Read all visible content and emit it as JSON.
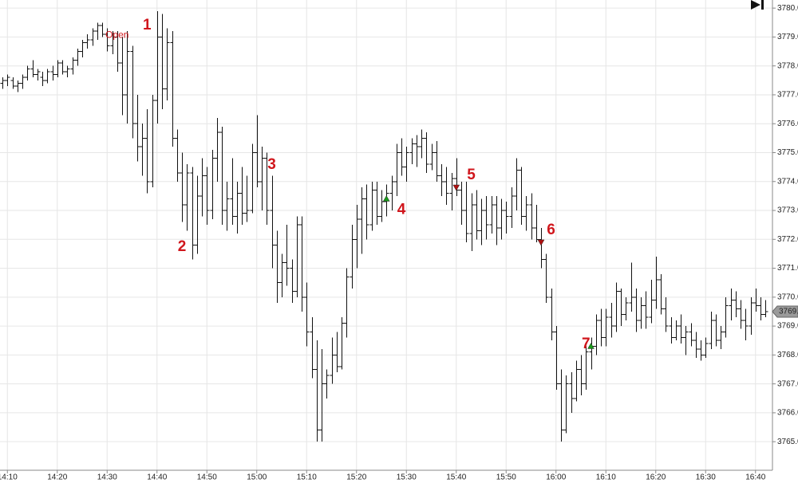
{
  "chart_data": {
    "type": "ohlc",
    "categories": [
      null,
      "14:10",
      null,
      null,
      null,
      null,
      null,
      null,
      null,
      null,
      null,
      "14:20",
      null,
      null,
      null,
      null,
      null,
      null,
      null,
      null,
      null,
      "14:30",
      null,
      null,
      null,
      null,
      null,
      null,
      null,
      null,
      null,
      "14:40",
      null,
      null,
      null,
      null,
      null,
      null,
      null,
      null,
      null,
      "14:50",
      null,
      null,
      null,
      null,
      null,
      null,
      null,
      null,
      null,
      "15:00",
      null,
      null,
      null,
      null,
      null,
      null,
      null,
      null,
      null,
      "15:10",
      null,
      null,
      null,
      null,
      null,
      null,
      null,
      null,
      null,
      "15:20",
      null,
      null,
      null,
      null,
      null,
      null,
      null,
      null,
      null,
      "15:30",
      null,
      null,
      null,
      null,
      null,
      null,
      null,
      null,
      null,
      "15:40",
      null,
      null,
      null,
      null,
      null,
      null,
      null,
      null,
      null,
      "15:50",
      null,
      null,
      null,
      null,
      null,
      null,
      null,
      null,
      null,
      "16:00",
      null,
      null,
      null,
      null,
      null,
      null,
      null,
      null,
      null,
      "16:10",
      null,
      null,
      null,
      null,
      null,
      null,
      null,
      null,
      null,
      "16:20",
      null,
      null,
      null,
      null,
      null,
      null,
      null,
      null,
      null,
      "16:30",
      null,
      null,
      null,
      null,
      null,
      null,
      null,
      null,
      null,
      "16:40",
      null,
      null
    ],
    "ohlc": [
      [
        3777.4,
        3777.6,
        3777.2,
        3777.5
      ],
      [
        3777.5,
        3777.7,
        3777.3,
        3777.6
      ],
      [
        3777.5,
        3777.6,
        3777.2,
        3777.3
      ],
      [
        3777.3,
        3777.5,
        3777.1,
        3777.4
      ],
      [
        3777.4,
        3777.7,
        3777.2,
        3777.6
      ],
      [
        3777.6,
        3778.0,
        3777.5,
        3777.9
      ],
      [
        3777.9,
        3778.2,
        3777.6,
        3777.7
      ],
      [
        3777.7,
        3777.9,
        3777.5,
        3777.8
      ],
      [
        3777.6,
        3777.8,
        3777.3,
        3777.5
      ],
      [
        3777.5,
        3777.9,
        3777.4,
        3777.8
      ],
      [
        3777.8,
        3778.0,
        3777.5,
        3777.7
      ],
      [
        3777.7,
        3778.2,
        3777.6,
        3778.1
      ],
      [
        3778.1,
        3778.2,
        3777.7,
        3777.8
      ],
      [
        3777.8,
        3778.0,
        3777.6,
        3777.9
      ],
      [
        3777.9,
        3778.3,
        3777.7,
        3778.2
      ],
      [
        3778.2,
        3778.6,
        3778.0,
        3778.5
      ],
      [
        3778.5,
        3778.9,
        3778.3,
        3778.8
      ],
      [
        3778.8,
        3779.1,
        3778.6,
        3778.9
      ],
      [
        3778.9,
        3779.3,
        3778.7,
        3779.2
      ],
      [
        3779.2,
        3779.5,
        3778.9,
        3779.4
      ],
      [
        3779.4,
        3779.5,
        3779.0,
        3779.1
      ],
      [
        3779.1,
        3779.3,
        3778.5,
        3778.7
      ],
      [
        3778.7,
        3779.2,
        3778.4,
        3779.0
      ],
      [
        3779.0,
        3779.2,
        3777.8,
        3778.1
      ],
      [
        3778.1,
        3779.0,
        3776.3,
        3777.0
      ],
      [
        3777.0,
        3779.2,
        3776.0,
        3778.5
      ],
      [
        3778.5,
        3778.7,
        3775.5,
        3776.0
      ],
      [
        3776.0,
        3777.0,
        3774.7,
        3775.2
      ],
      [
        3775.2,
        3776.0,
        3774.2,
        3775.5
      ],
      [
        3775.5,
        3776.5,
        3773.6,
        3774.0
      ],
      [
        3774.0,
        3777.0,
        3773.8,
        3776.8
      ],
      [
        3776.8,
        3779.9,
        3776.0,
        3779.0
      ],
      [
        3779.0,
        3779.8,
        3776.5,
        3777.2
      ],
      [
        3777.2,
        3779.3,
        3776.8,
        3778.8
      ],
      [
        3778.8,
        3779.2,
        3775.2,
        3775.5
      ],
      [
        3775.5,
        3775.8,
        3774.0,
        3774.3
      ],
      [
        3774.3,
        3775.0,
        3772.6,
        3773.2
      ],
      [
        3773.2,
        3774.6,
        3772.3,
        3774.3
      ],
      [
        3774.3,
        3774.5,
        3771.3,
        3771.8
      ],
      [
        3771.8,
        3774.2,
        3771.5,
        3773.5
      ],
      [
        3773.5,
        3774.8,
        3772.8,
        3774.2
      ],
      [
        3774.2,
        3774.5,
        3772.5,
        3773.0
      ],
      [
        3773.0,
        3775.1,
        3772.7,
        3774.8
      ],
      [
        3774.8,
        3776.2,
        3774.0,
        3775.7
      ],
      [
        3775.7,
        3775.9,
        3772.5,
        3773.0
      ],
      [
        3773.0,
        3774.0,
        3772.3,
        3773.4
      ],
      [
        3773.4,
        3774.8,
        3772.5,
        3772.8
      ],
      [
        3772.8,
        3774.0,
        3772.2,
        3773.6
      ],
      [
        3773.6,
        3774.5,
        3772.5,
        3772.9
      ],
      [
        3772.9,
        3774.2,
        3772.6,
        3773.0
      ],
      [
        3773.0,
        3775.3,
        3772.9,
        3775.0
      ],
      [
        3775.0,
        3776.3,
        3773.8,
        3774.0
      ],
      [
        3774.0,
        3775.2,
        3773.0,
        3774.8
      ],
      [
        3774.8,
        3775.0,
        3772.5,
        3773.0
      ],
      [
        3773.0,
        3774.2,
        3771.0,
        3771.8
      ],
      [
        3771.8,
        3772.3,
        3769.8,
        3770.5
      ],
      [
        3770.5,
        3771.5,
        3770.0,
        3771.2
      ],
      [
        3771.2,
        3772.5,
        3770.4,
        3771.0
      ],
      [
        3771.0,
        3771.3,
        3769.8,
        3770.2
      ],
      [
        3770.2,
        3772.8,
        3770.0,
        3772.5
      ],
      [
        3772.5,
        3772.8,
        3769.5,
        3770.0
      ],
      [
        3770.0,
        3770.5,
        3768.3,
        3768.8
      ],
      [
        3768.8,
        3769.3,
        3767.2,
        3767.5
      ],
      [
        3767.5,
        3768.5,
        3765.0,
        3765.4
      ],
      [
        3765.4,
        3768.2,
        3765.0,
        3767.0
      ],
      [
        3767.0,
        3767.5,
        3766.5,
        3767.3
      ],
      [
        3767.3,
        3768.6,
        3767.0,
        3768.0
      ],
      [
        3768.0,
        3768.8,
        3767.4,
        3767.6
      ],
      [
        3767.6,
        3769.3,
        3767.5,
        3769.1
      ],
      [
        3769.1,
        3771.0,
        3768.6,
        3770.7
      ],
      [
        3770.7,
        3772.5,
        3770.3,
        3772.0
      ],
      [
        3772.0,
        3773.2,
        3771.0,
        3772.7
      ],
      [
        3772.7,
        3773.8,
        3771.5,
        3773.4
      ],
      [
        3773.4,
        3773.9,
        3772.0,
        3772.5
      ],
      [
        3772.5,
        3774.0,
        3772.3,
        3773.7
      ],
      [
        3773.7,
        3774.0,
        3772.5,
        3772.8
      ],
      [
        3772.8,
        3773.7,
        3772.6,
        3773.3
      ],
      [
        3773.3,
        3773.9,
        3772.8,
        3773.6
      ],
      [
        3773.6,
        3774.2,
        3773.0,
        3774.0
      ],
      [
        3774.0,
        3775.3,
        3773.5,
        3775.0
      ],
      [
        3775.0,
        3775.5,
        3774.2,
        3774.5
      ],
      [
        3774.5,
        3775.2,
        3774.0,
        3775.0
      ],
      [
        3775.0,
        3775.5,
        3774.6,
        3775.3
      ],
      [
        3775.3,
        3775.6,
        3774.5,
        3775.2
      ],
      [
        3775.2,
        3775.8,
        3774.8,
        3775.5
      ],
      [
        3775.5,
        3775.7,
        3774.3,
        3774.6
      ],
      [
        3774.6,
        3775.3,
        3774.4,
        3775.0
      ],
      [
        3775.0,
        3775.4,
        3774.0,
        3774.2
      ],
      [
        3774.2,
        3774.6,
        3773.5,
        3774.0
      ],
      [
        3774.0,
        3774.5,
        3773.2,
        3773.6
      ],
      [
        3773.6,
        3774.3,
        3773.0,
        3774.1
      ],
      [
        3774.1,
        3774.8,
        3773.5,
        3773.7
      ],
      [
        3773.7,
        3774.0,
        3772.5,
        3773.0
      ],
      [
        3773.0,
        3774.0,
        3771.9,
        3772.2
      ],
      [
        3772.2,
        3773.6,
        3771.6,
        3773.2
      ],
      [
        3773.2,
        3773.7,
        3772.0,
        3772.3
      ],
      [
        3772.3,
        3773.4,
        3771.8,
        3773.0
      ],
      [
        3773.0,
        3773.5,
        3772.0,
        3772.5
      ],
      [
        3772.5,
        3773.5,
        3772.2,
        3773.2
      ],
      [
        3773.2,
        3773.5,
        3771.8,
        3772.4
      ],
      [
        3772.4,
        3773.4,
        3772.0,
        3773.0
      ],
      [
        3773.0,
        3773.3,
        3772.2,
        3772.8
      ],
      [
        3772.8,
        3773.8,
        3772.4,
        3773.5
      ],
      [
        3773.5,
        3774.8,
        3773.0,
        3774.4
      ],
      [
        3774.4,
        3774.5,
        3772.5,
        3772.8
      ],
      [
        3772.8,
        3773.5,
        3772.3,
        3773.2
      ],
      [
        3773.2,
        3773.6,
        3772.0,
        3772.4
      ],
      [
        3772.4,
        3773.2,
        3771.9,
        3772.0
      ],
      [
        3772.0,
        3772.4,
        3771.0,
        3771.3
      ],
      [
        3771.3,
        3771.5,
        3769.8,
        3770.0
      ],
      [
        3770.0,
        3770.3,
        3768.5,
        3768.8
      ],
      [
        3768.8,
        3769.0,
        3766.8,
        3767.0
      ],
      [
        3767.0,
        3767.5,
        3765.0,
        3765.4
      ],
      [
        3765.4,
        3767.3,
        3765.3,
        3767.0
      ],
      [
        3767.0,
        3767.4,
        3766.0,
        3766.5
      ],
      [
        3766.5,
        3767.8,
        3766.4,
        3767.5
      ],
      [
        3767.5,
        3768.0,
        3766.6,
        3767.0
      ],
      [
        3767.0,
        3768.3,
        3766.8,
        3768.1
      ],
      [
        3768.1,
        3768.6,
        3767.5,
        3768.3
      ],
      [
        3768.3,
        3769.4,
        3768.0,
        3769.2
      ],
      [
        3769.2,
        3769.6,
        3768.3,
        3768.6
      ],
      [
        3768.6,
        3769.6,
        3768.3,
        3769.3
      ],
      [
        3769.3,
        3769.8,
        3768.6,
        3769.0
      ],
      [
        3769.0,
        3770.5,
        3768.8,
        3770.2
      ],
      [
        3770.2,
        3770.3,
        3769.0,
        3769.4
      ],
      [
        3769.4,
        3770.0,
        3769.2,
        3769.8
      ],
      [
        3769.8,
        3771.2,
        3769.5,
        3770.0
      ],
      [
        3770.0,
        3770.3,
        3768.8,
        3769.2
      ],
      [
        3769.2,
        3770.0,
        3768.9,
        3769.7
      ],
      [
        3769.7,
        3770.2,
        3768.9,
        3769.3
      ],
      [
        3769.3,
        3770.6,
        3769.1,
        3769.9
      ],
      [
        3769.9,
        3771.4,
        3769.6,
        3770.6
      ],
      [
        3770.6,
        3770.8,
        3769.4,
        3769.6
      ],
      [
        3769.6,
        3770.0,
        3768.8,
        3769.0
      ],
      [
        3769.0,
        3769.3,
        3768.4,
        3768.6
      ],
      [
        3768.6,
        3769.2,
        3768.5,
        3769.0
      ],
      [
        3769.0,
        3769.4,
        3768.4,
        3768.6
      ],
      [
        3768.6,
        3769.0,
        3768.0,
        3768.8
      ],
      [
        3768.8,
        3769.1,
        3768.3,
        3768.5
      ],
      [
        3768.5,
        3768.8,
        3767.9,
        3768.2
      ],
      [
        3768.2,
        3768.5,
        3767.8,
        3768.0
      ],
      [
        3768.0,
        3768.6,
        3767.9,
        3768.4
      ],
      [
        3768.4,
        3769.5,
        3768.2,
        3769.2
      ],
      [
        3769.2,
        3769.4,
        3768.3,
        3768.5
      ],
      [
        3768.5,
        3769.0,
        3768.2,
        3768.8
      ],
      [
        3768.8,
        3770.0,
        3768.6,
        3769.7
      ],
      [
        3769.7,
        3770.3,
        3769.2,
        3769.9
      ],
      [
        3769.9,
        3770.2,
        3769.3,
        3769.6
      ],
      [
        3769.6,
        3769.9,
        3768.9,
        3769.2
      ],
      [
        3769.2,
        3769.6,
        3768.5,
        3769.0
      ],
      [
        3769.0,
        3770.0,
        3768.7,
        3769.8
      ],
      [
        3769.8,
        3770.3,
        3769.5,
        3769.7
      ],
      [
        3769.7,
        3770.0,
        3769.2,
        3769.4
      ],
      [
        3769.4,
        3769.9,
        3769.3,
        3769.5
      ]
    ],
    "color": "#111111",
    "ylim": [
      3764.15,
      3780.28
    ],
    "yticks": [
      {
        "value": 3765,
        "label": "3765.0"
      },
      {
        "value": 3766,
        "label": "3766.0"
      },
      {
        "value": 3767,
        "label": "3767.0"
      },
      {
        "value": 3768,
        "label": "3768.0"
      },
      {
        "value": 3769,
        "label": "3769.0"
      },
      {
        "value": 3770,
        "label": "3770.0"
      },
      {
        "value": 3771,
        "label": "3771.0"
      },
      {
        "value": 3772,
        "label": "3772.0"
      },
      {
        "value": 3773,
        "label": "3773.0"
      },
      {
        "value": 3774,
        "label": "3774.0"
      },
      {
        "value": 3775,
        "label": "3775.0"
      },
      {
        "value": 3776,
        "label": "3776.0"
      },
      {
        "value": 3777,
        "label": "3777.0"
      },
      {
        "value": 3778,
        "label": "3778.0"
      },
      {
        "value": 3779,
        "label": "3779.0"
      },
      {
        "value": 3780,
        "label": "3780.0"
      }
    ],
    "grid": true,
    "last_price": {
      "value": 3769.5,
      "label": "3769."
    },
    "annotations": [
      {
        "text": "Open",
        "index": 23,
        "price": 3779.06
      },
      {
        "text": "1",
        "index": 29,
        "price": 3779.4
      },
      {
        "text": "2",
        "index": 36,
        "price": 3771.73
      },
      {
        "text": "3",
        "index": 54,
        "price": 3774.57
      },
      {
        "text": "4",
        "index": 80,
        "price": 3773.02
      },
      {
        "text": "5",
        "index": 94,
        "price": 3774.21
      },
      {
        "text": "6",
        "index": 110,
        "price": 3772.31
      },
      {
        "text": "7",
        "index": 117,
        "price": 3768.37
      }
    ],
    "signals": [
      {
        "index": 77,
        "price": 3773.4,
        "direction": "up",
        "color": "#1a9a1a"
      },
      {
        "index": 91,
        "price": 3773.8,
        "direction": "down",
        "color": "#b01010"
      },
      {
        "index": 108,
        "price": 3771.9,
        "direction": "down",
        "color": "#b01010"
      },
      {
        "index": 118,
        "price": 3768.3,
        "direction": "up",
        "color": "#1a9a1a"
      }
    ]
  }
}
